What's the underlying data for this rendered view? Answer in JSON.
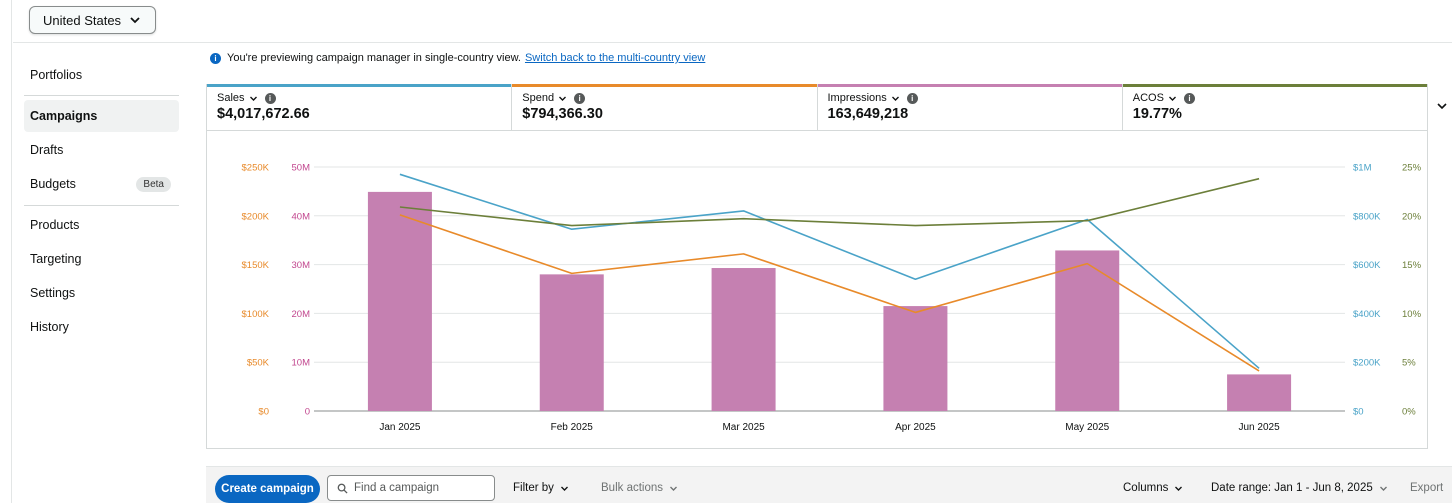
{
  "header": {
    "country_selector": "United States"
  },
  "sidebar": {
    "items": [
      {
        "label": "Portfolios"
      },
      {
        "label": "Campaigns",
        "active": true
      },
      {
        "label": "Drafts"
      },
      {
        "label": "Budgets",
        "badge": "Beta"
      },
      {
        "label": "Products"
      },
      {
        "label": "Targeting"
      },
      {
        "label": "Settings"
      },
      {
        "label": "History"
      }
    ]
  },
  "notice": {
    "text": "You're previewing campaign manager in single-country view.",
    "link": "Switch back to the multi-country view"
  },
  "metrics": [
    {
      "label": "Sales",
      "value": "$4,017,672.66",
      "color": "#4aa3c8"
    },
    {
      "label": "Spend",
      "value": "$794,366.30",
      "color": "#e88a2a"
    },
    {
      "label": "Impressions",
      "value": "163,649,218",
      "color": "#c580b1"
    },
    {
      "label": "ACOS",
      "value": "19.77%",
      "color": "#6c7f3a"
    }
  ],
  "chart_data": {
    "type": "bar+line",
    "categories": [
      "Jan 2025",
      "Feb 2025",
      "Mar 2025",
      "Apr 2025",
      "May 2025",
      "Jun 2025"
    ],
    "axes": {
      "spend": {
        "side": "left-outer",
        "ticks": [
          "$0",
          "$50K",
          "$100K",
          "$150K",
          "$200K",
          "$250K"
        ],
        "range": [
          0,
          250000
        ],
        "color": "#e88a2a"
      },
      "impressions": {
        "side": "left-inner",
        "ticks": [
          "0",
          "10M",
          "20M",
          "30M",
          "40M",
          "50M"
        ],
        "range": [
          0,
          50000000
        ],
        "color": "#c2478f"
      },
      "sales": {
        "side": "right-inner",
        "ticks": [
          "$0",
          "$200K",
          "$400K",
          "$600K",
          "$800K",
          "$1M"
        ],
        "range": [
          0,
          1000000
        ],
        "color": "#4aa3c8"
      },
      "acos": {
        "side": "right-outer",
        "ticks": [
          "0%",
          "5%",
          "10%",
          "15%",
          "20%",
          "25%"
        ],
        "range": [
          0,
          25
        ],
        "color": "#6c7f3a"
      }
    },
    "series": [
      {
        "name": "Impressions",
        "type": "bar",
        "axis": "impressions",
        "color": "#c580b1",
        "values": [
          44900000,
          28000000,
          29300000,
          21500000,
          32900000,
          7500000
        ]
      },
      {
        "name": "Sales",
        "type": "line",
        "axis": "sales",
        "color": "#4aa3c8",
        "values": [
          970000,
          745000,
          820000,
          540000,
          785000,
          175000
        ]
      },
      {
        "name": "Spend",
        "type": "line",
        "axis": "spend",
        "color": "#e88a2a",
        "values": [
          201000,
          141000,
          161000,
          101000,
          151000,
          41000
        ]
      },
      {
        "name": "ACOS",
        "type": "line",
        "axis": "acos",
        "color": "#6c7f3a",
        "values": [
          20.9,
          19.0,
          19.7,
          19.0,
          19.5,
          23.8
        ]
      }
    ],
    "grid": true
  },
  "toolbar": {
    "create_campaign": "Create campaign",
    "search_placeholder": "Find a campaign",
    "filter_by": "Filter by",
    "bulk_actions": "Bulk actions",
    "columns": "Columns",
    "date_range": "Date range: Jan 1 - Jun 8, 2025",
    "export": "Export"
  }
}
